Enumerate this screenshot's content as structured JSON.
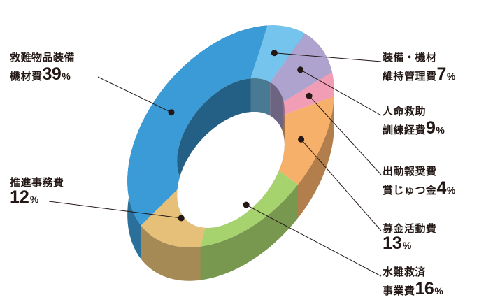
{
  "chart_data": {
    "type": "pie",
    "variant": "3d-donut",
    "title": "",
    "unit": "%",
    "slices": [
      {
        "label": "救難物品装備機材費",
        "value": 39,
        "color": "#3a9bd6"
      },
      {
        "label": "装備・機材維持管理費",
        "value": 7,
        "color": "#75c4ee"
      },
      {
        "label": "人命救助訓練経費",
        "value": 9,
        "color": "#aea2cf"
      },
      {
        "label": "出動報奨費賞じゅつ金",
        "value": 4,
        "color": "#f19db5"
      },
      {
        "label": "募金活動費",
        "value": 13,
        "color": "#f7b06a"
      },
      {
        "label": "水難救済事業費",
        "value": 16,
        "color": "#a6d36e"
      },
      {
        "label": "推進事務費",
        "value": 12,
        "color": "#e6bf78"
      }
    ]
  },
  "labels": [
    {
      "line1": "救難物品装備",
      "line2": "機材費",
      "pct": "39",
      "unit": "%"
    },
    {
      "line1": "装備・機材",
      "line2": "維持管理費",
      "pct": "7",
      "unit": "%"
    },
    {
      "line1": "人命救助",
      "line2": "訓練経費",
      "pct": "9",
      "unit": "%"
    },
    {
      "line1": "出動報奨費",
      "line2": "賞じゅつ金",
      "pct": "4",
      "unit": "%"
    },
    {
      "line1": "募金活動費",
      "line2": "",
      "pct": "13",
      "unit": "%"
    },
    {
      "line1": "水難救済",
      "line2": "事業費",
      "pct": "16",
      "unit": "%"
    },
    {
      "line1": "推進事務費",
      "line2": "",
      "pct": "12",
      "unit": "%"
    }
  ]
}
